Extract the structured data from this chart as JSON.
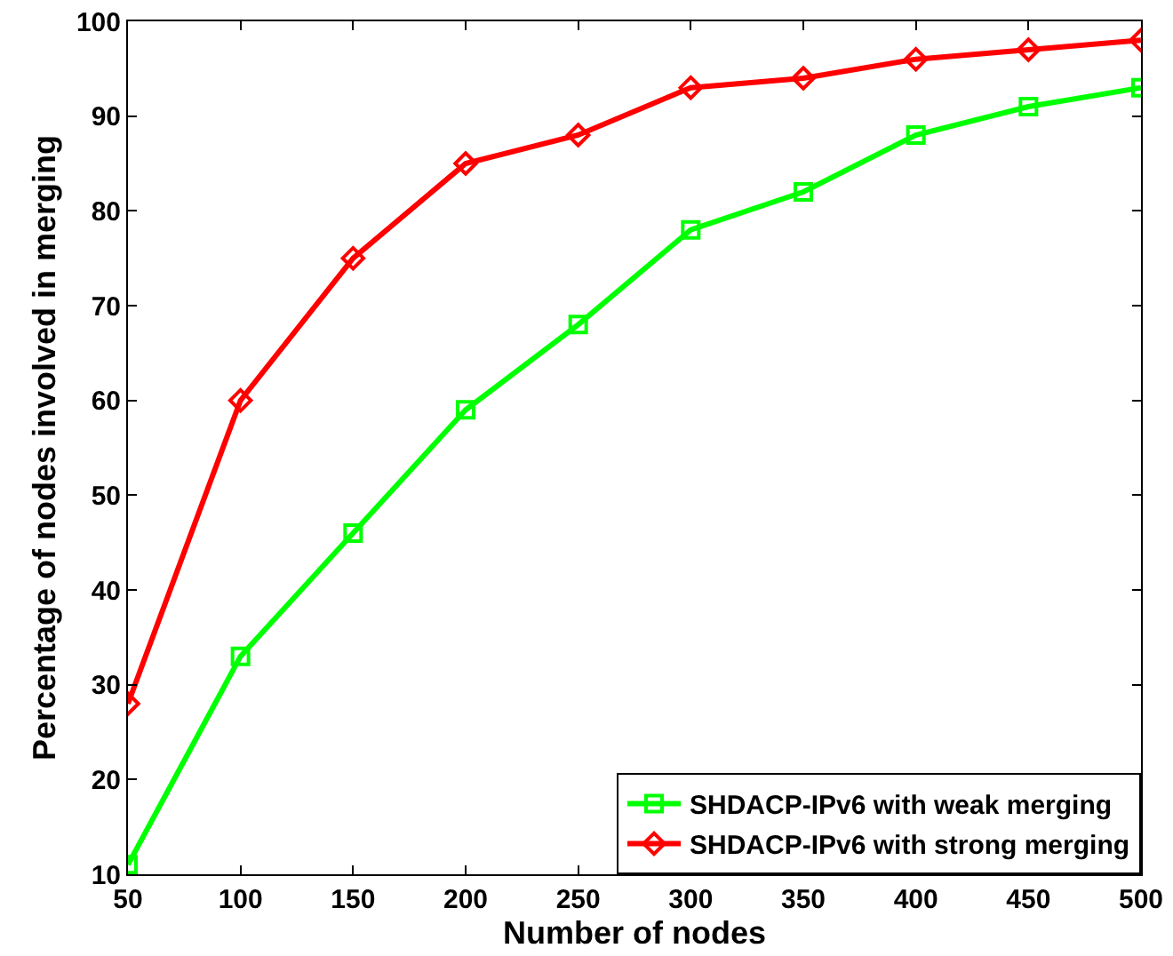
{
  "chart_data": {
    "type": "line",
    "xlabel": "Number of nodes",
    "ylabel": "Percentage of nodes involved in merging",
    "x": [
      50,
      100,
      150,
      200,
      250,
      300,
      350,
      400,
      450,
      500
    ],
    "series": [
      {
        "name": "SHDACP-IPv6 with weak merging",
        "color": "#00ff00",
        "marker": "square",
        "values": [
          11,
          33,
          46,
          59,
          68,
          78,
          82,
          88,
          91,
          93
        ]
      },
      {
        "name": "SHDACP-IPv6 with strong merging",
        "color": "#ff0000",
        "marker": "diamond",
        "values": [
          28,
          60,
          75,
          85,
          88,
          93,
          94,
          96,
          97,
          98
        ]
      }
    ],
    "xlim": [
      50,
      500
    ],
    "xticks": [
      50,
      100,
      150,
      200,
      250,
      300,
      350,
      400,
      450,
      500
    ],
    "ylim": [
      10,
      100
    ],
    "yticks": [
      10,
      20,
      30,
      40,
      50,
      60,
      70,
      80,
      90,
      100
    ],
    "grid": false,
    "legend": "bottom right",
    "line_style": "solid"
  }
}
